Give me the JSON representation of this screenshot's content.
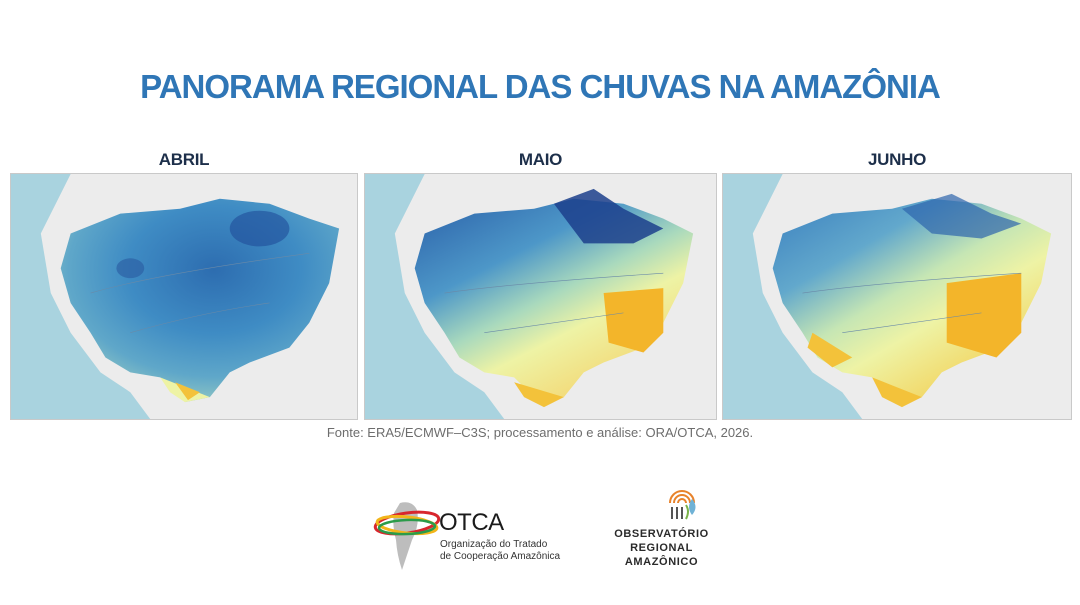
{
  "title": "PANORAMA REGIONAL DAS CHUVAS NA AMAZÔNIA",
  "panels": [
    {
      "month": "ABRIL"
    },
    {
      "month": "MAIO"
    },
    {
      "month": "JUNHO"
    }
  ],
  "source": "Fonte: ERA5/ECMWF–C3S; processamento e análise: ORA/OTCA, 2026.",
  "logos": {
    "otca": {
      "name": "OTCA",
      "subtitle_line1": "Organização do Tratado",
      "subtitle_line2": "de Cooperação Amazônica"
    },
    "ora": {
      "line1": "OBSERVATÓRIO",
      "line2": "REGIONAL",
      "line3": "AMAZÔNICO"
    }
  },
  "colors": {
    "title": "#2f76b6",
    "wet_dark": "#1f4d9a",
    "wet": "#3f8cc4",
    "mid": "#8fc9c8",
    "dry_light": "#eef3a5",
    "dry": "#f3c23a",
    "ocean": "#a9d3df",
    "land": "#ededed"
  }
}
